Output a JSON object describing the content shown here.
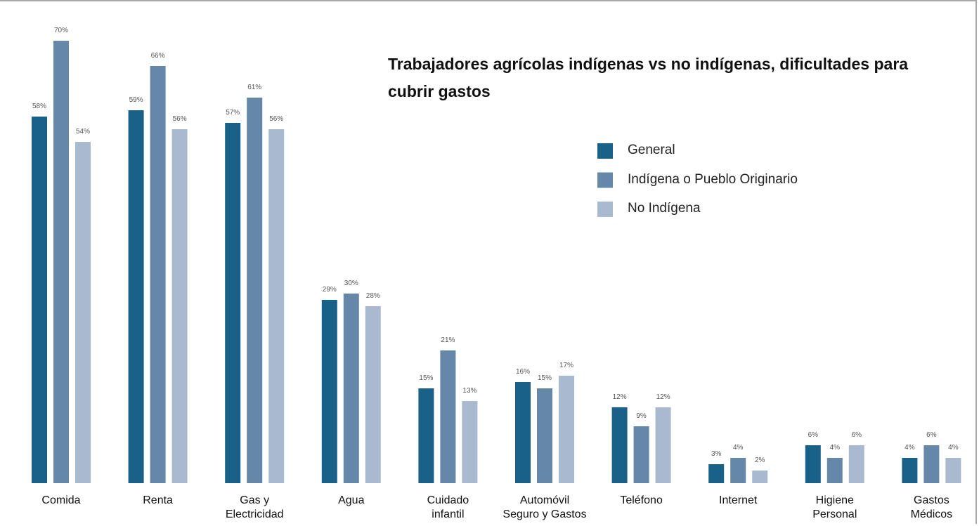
{
  "chart_data": {
    "type": "bar",
    "title": "Trabajadores agrícolas indígenas vs no indígenas, dificultades para cubrir gastos",
    "categories": [
      "Comida",
      "Renta",
      "Gas y\nElectricidad",
      "Agua",
      "Cuidado\ninfantil",
      "Automóvil\nSeguro y Gastos",
      "Teléfono",
      "Internet",
      "Higiene\nPersonal",
      "Gastos\nMédicos"
    ],
    "series": [
      {
        "name": "General",
        "color": "#1a6189",
        "values": [
          58,
          59,
          57,
          29,
          15,
          16,
          12,
          3,
          6,
          4
        ],
        "value_labels": [
          "58%",
          "59%",
          "57%",
          "29%",
          "15%",
          "16%",
          "12%",
          "3%",
          "6%",
          "4%"
        ]
      },
      {
        "name": "Indígena o Pueblo Originario",
        "color": "#6587a8",
        "values": [
          70,
          66,
          61,
          30,
          21,
          15,
          9,
          4,
          4,
          6
        ],
        "value_labels": [
          "70%",
          "66%",
          "61%",
          "30%",
          "21%",
          "15%",
          "9%",
          "4%",
          "4%",
          "6%"
        ]
      },
      {
        "name": "No Indígena",
        "color": "#a9b9d0",
        "values": [
          54,
          56,
          56,
          28,
          13,
          17,
          12,
          2,
          6,
          4
        ],
        "value_labels": [
          "54%",
          "56%",
          "56%",
          "28%",
          "13%",
          "17%",
          "12%",
          "2%",
          "6%",
          "4%"
        ]
      }
    ],
    "legend": "upper right"
  }
}
